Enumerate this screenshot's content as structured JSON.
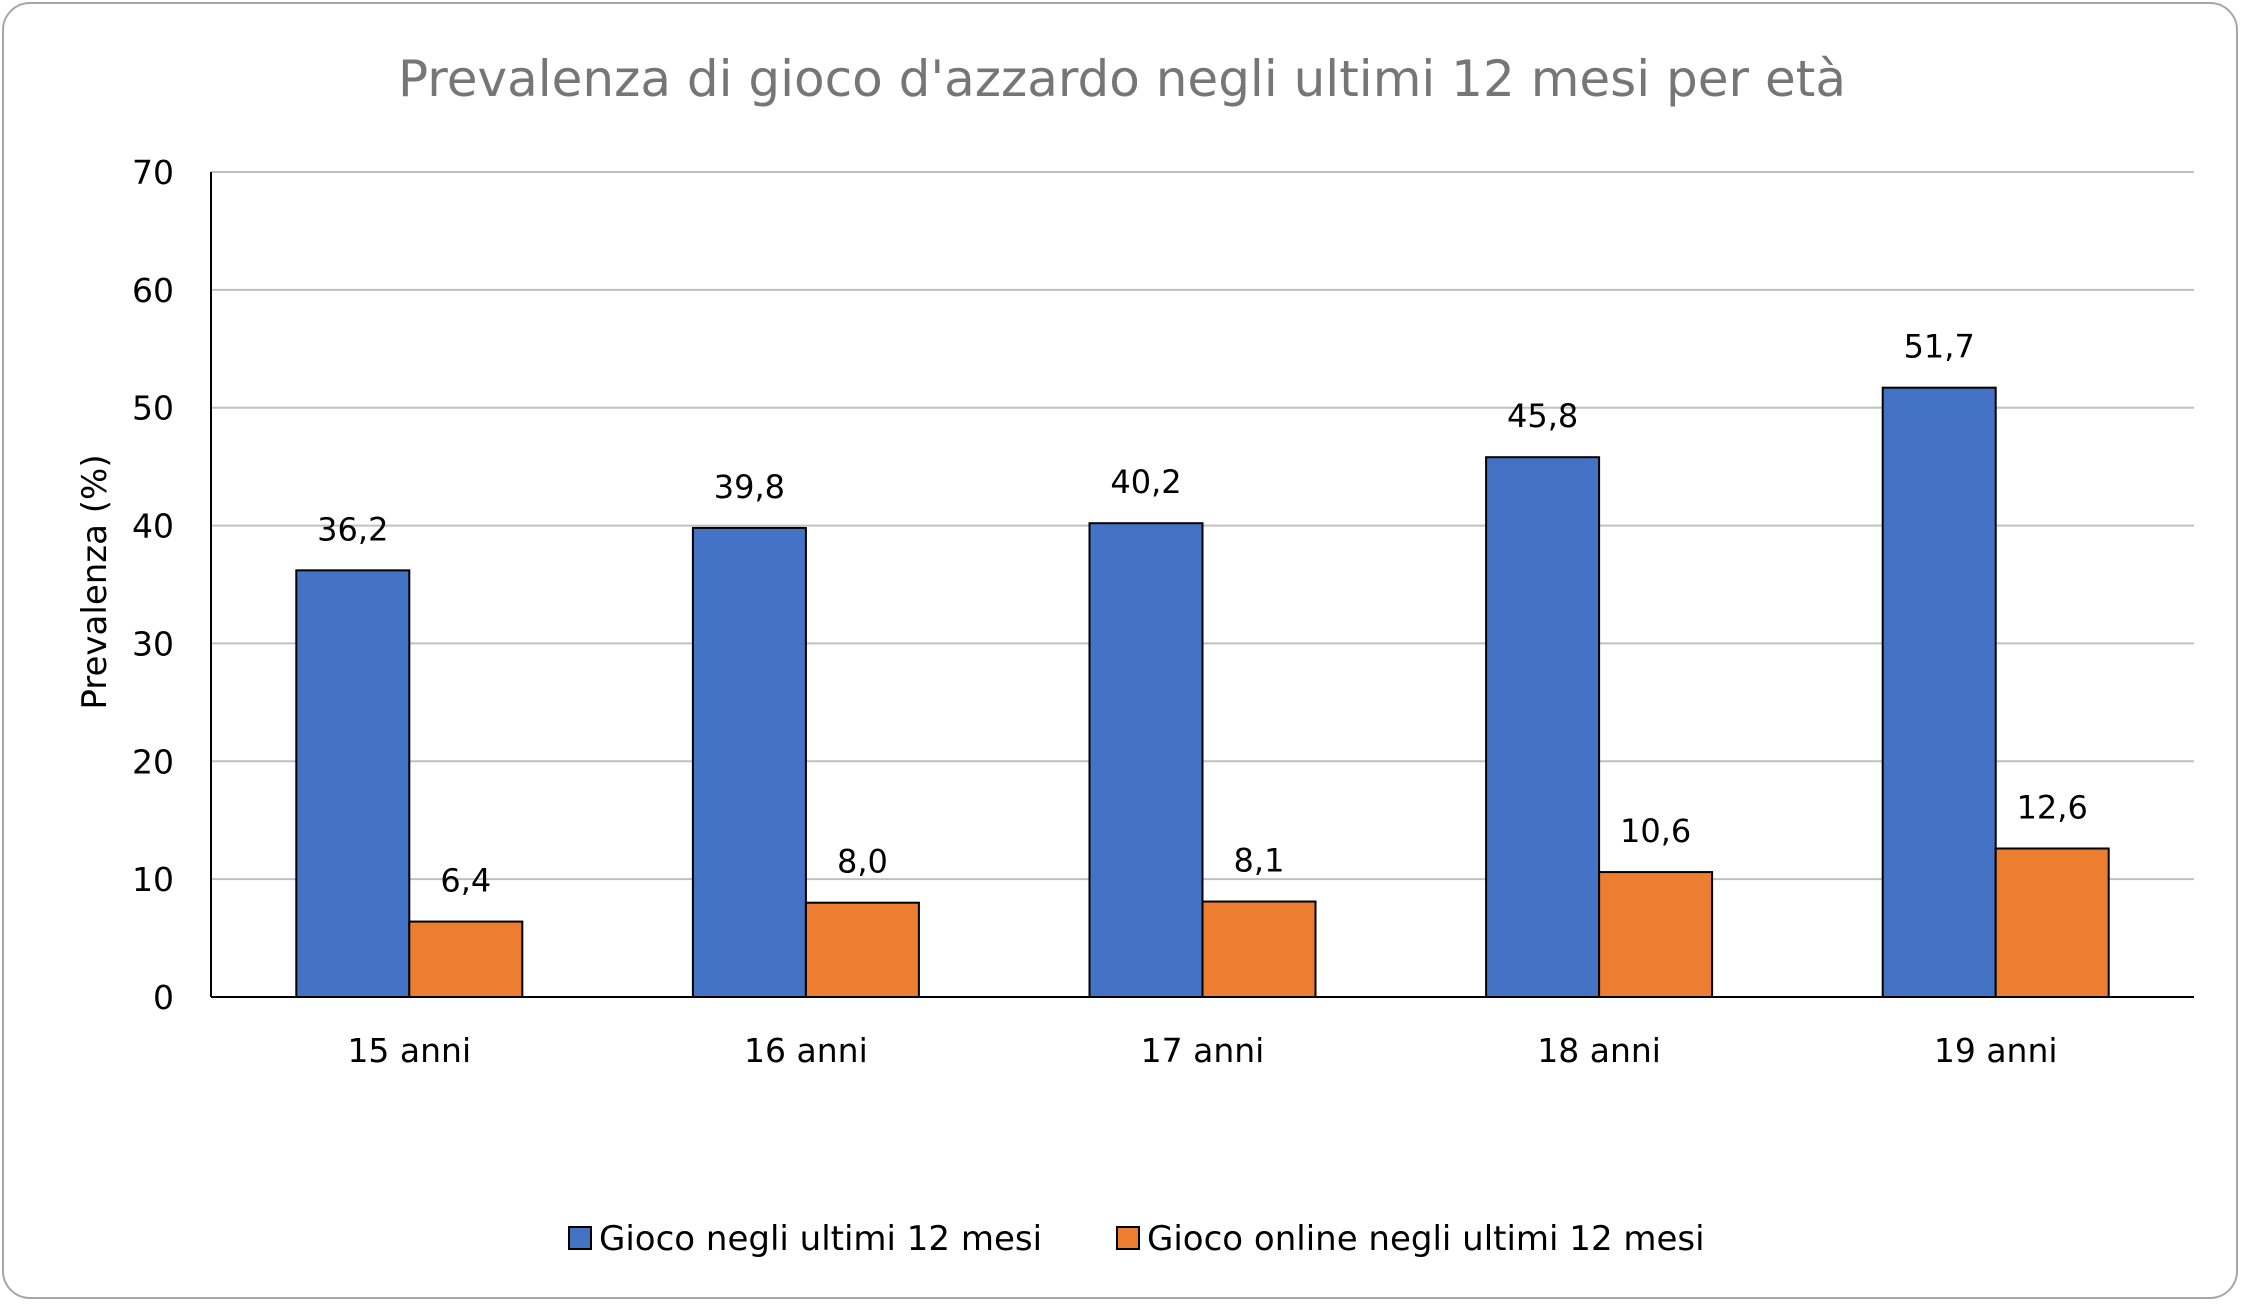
{
  "chart_data": {
    "type": "bar",
    "title": "Prevalenza di gioco d'azzardo negli ultimi 12 mesi per età",
    "xlabel": "",
    "ylabel": "Prevalenza (%)",
    "categories": [
      "15 anni",
      "16 anni",
      "17 anni",
      "18 anni",
      "19 anni"
    ],
    "series": [
      {
        "name": "Gioco negli ultimi 12 mesi",
        "color": "#4472c4",
        "values": [
          36.2,
          39.8,
          40.2,
          45.8,
          51.7
        ],
        "labels": [
          "36,2",
          "39,8",
          "40,2",
          "45,8",
          "51,7"
        ]
      },
      {
        "name": "Gioco online negli ultimi 12 mesi",
        "color": "#ed7d31",
        "values": [
          6.4,
          8.0,
          8.1,
          10.6,
          12.6
        ],
        "labels": [
          "6,4",
          "8,0",
          "8,1",
          "10,6",
          "12,6"
        ]
      }
    ],
    "ylim": [
      0,
      70
    ],
    "yticks": [
      0,
      10,
      20,
      30,
      40,
      50,
      60,
      70
    ],
    "grid": true,
    "legend_position": "bottom"
  }
}
